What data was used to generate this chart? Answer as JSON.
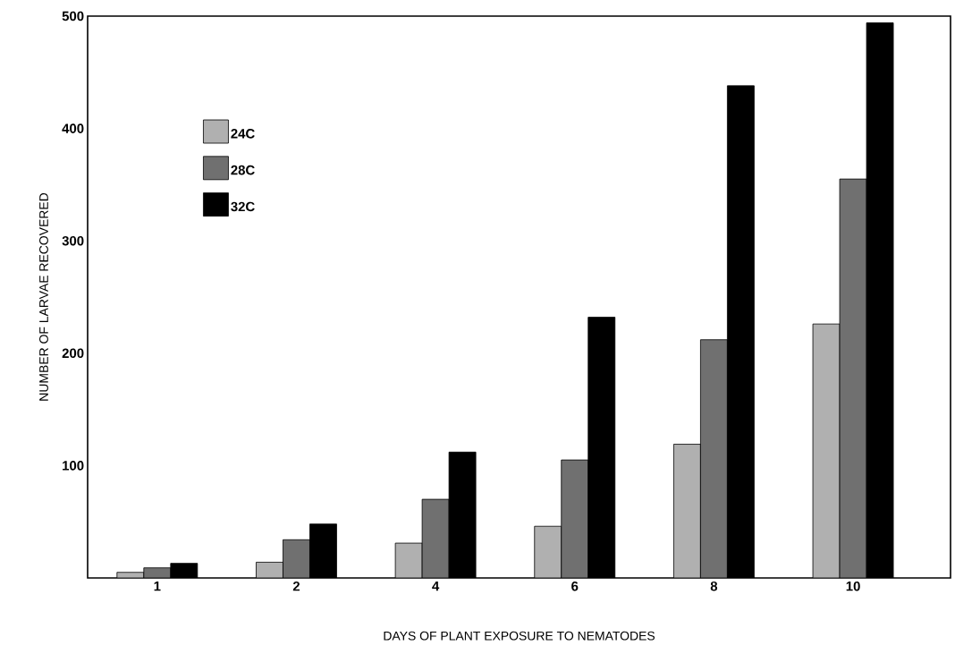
{
  "chart_data": {
    "type": "bar",
    "xlabel": "DAYS OF PLANT EXPOSURE  TO NEMATODES",
    "ylabel": "NUMBER OF LARVAE  RECOVERED",
    "categories": [
      "1",
      "2",
      "4",
      "6",
      "8",
      "10"
    ],
    "series": [
      {
        "name": "24C",
        "color": "#b0b0b0",
        "values": [
          5,
          14,
          31,
          46,
          119,
          226
        ]
      },
      {
        "name": "28C",
        "color": "#707070",
        "values": [
          9,
          34,
          70,
          105,
          212,
          355
        ]
      },
      {
        "name": "32C",
        "color": "#000000",
        "values": [
          13,
          48,
          112,
          232,
          438,
          494
        ]
      }
    ],
    "ylim": [
      0,
      500
    ],
    "yticks": [
      100,
      200,
      300,
      400,
      500
    ],
    "legend": "top left",
    "grid": false
  }
}
